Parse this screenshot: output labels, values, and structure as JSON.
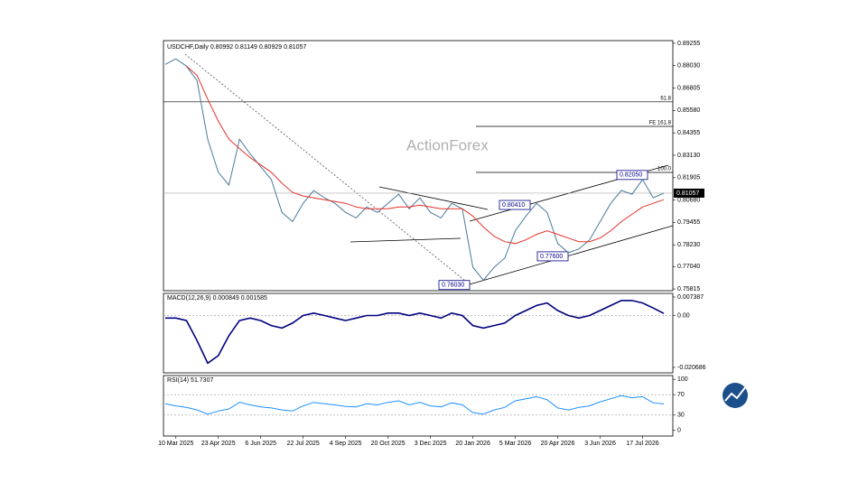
{
  "chart_data": [
    {
      "type": "line",
      "title": "USDCHF,Daily 0.80992 0.81149 0.80929 0.81057",
      "watermark": "ActionForex",
      "categories": [
        null,
        "10 Mar 2025",
        null,
        null,
        null,
        "23 Apr 2025",
        null,
        null,
        null,
        "6 Jun 2025",
        null,
        null,
        null,
        "22 Jul 2025",
        null,
        null,
        null,
        "4 Sep 2025",
        null,
        null,
        null,
        "20 Oct 2025",
        null,
        null,
        null,
        "3 Dec 2025",
        null,
        null,
        null,
        "20 Jan 2026",
        null,
        null,
        null,
        "5 Mar 2026",
        null,
        null,
        null,
        "20 Apr 2026",
        null,
        null,
        null,
        "3 Jun 2026",
        null,
        null,
        null,
        "17 Jul 2026",
        null,
        null
      ],
      "series": [
        {
          "color": "#4a7a9a",
          "values": [
            0.881,
            0.884,
            0.88,
            0.872,
            0.84,
            0.822,
            0.815,
            0.84,
            0.832,
            0.825,
            0.818,
            0.8,
            0.795,
            0.805,
            0.812,
            0.808,
            0.805,
            0.8,
            0.797,
            0.803,
            0.8,
            0.805,
            0.81,
            0.802,
            0.808,
            0.8,
            0.797,
            0.805,
            0.802,
            0.77,
            0.763,
            0.77,
            0.775,
            0.79,
            0.798,
            0.805,
            0.8,
            0.783,
            0.778,
            0.78,
            0.785,
            0.795,
            0.805,
            0.812,
            0.81,
            0.818,
            0.808,
            0.81057
          ]
        },
        {
          "color": "#e8302a",
          "values": [
            null,
            null,
            0.88,
            0.875,
            0.862,
            0.85,
            0.84,
            0.835,
            0.83,
            0.826,
            0.822,
            0.816,
            0.811,
            0.809,
            0.808,
            0.807,
            0.806,
            0.805,
            0.803,
            0.802,
            0.802,
            0.802,
            0.803,
            0.803,
            0.804,
            0.803,
            0.802,
            0.802,
            0.802,
            0.798,
            0.792,
            0.787,
            0.784,
            0.783,
            0.785,
            0.788,
            0.79,
            0.788,
            0.786,
            0.784,
            0.784,
            0.786,
            0.79,
            0.795,
            0.799,
            0.803,
            0.805,
            0.807
          ]
        }
      ],
      "ylim": [
        0.7572,
        0.894
      ],
      "yticks": [
        0.89255,
        0.8803,
        0.86805,
        0.8558,
        0.84355,
        0.8313,
        0.81905,
        0.8068,
        0.79455,
        0.7823,
        0.7704,
        0.75815
      ],
      "ytick_labels": [
        "0.89255",
        "0.88030",
        "0.86805",
        "0.85580",
        "0.84355",
        "0.83130",
        "0.81905",
        "0.80680",
        "0.79455",
        "0.78230",
        "0.77040",
        "0.75815"
      ],
      "current_price": 0.81057,
      "current_price_label": "0.81057",
      "levels": [
        {
          "label": "61.8",
          "value": 0.8605
        },
        {
          "label": "FE 161.8",
          "value": 0.8471
        },
        {
          "label": "100.0",
          "value": 0.8219
        }
      ],
      "annotations": [
        {
          "text": "0.82050",
          "value": 0.8205
        },
        {
          "text": "0.80410",
          "value": 0.8041
        },
        {
          "text": "0.77600",
          "value": 0.776
        },
        {
          "text": "0.76030",
          "value": 0.7603
        }
      ]
    },
    {
      "type": "line",
      "title": "MACD(12,26,9) 0.000849 0.001585",
      "series": [
        {
          "color": "#000080",
          "values": [
            -0.001,
            -0.001,
            -0.002,
            -0.01,
            -0.019,
            -0.016,
            -0.008,
            -0.002,
            -0.001,
            -0.002,
            -0.004,
            -0.005,
            -0.003,
            0.0,
            0.001,
            0.0,
            -0.001,
            -0.002,
            -0.001,
            0.0,
            0.0,
            0.001,
            0.001,
            0.0,
            0.001,
            0.0,
            -0.001,
            0.001,
            0.0,
            -0.004,
            -0.005,
            -0.004,
            -0.003,
            0.0,
            0.002,
            0.004,
            0.005,
            0.002,
            0.0,
            -0.001,
            0.0,
            0.002,
            0.004,
            0.006,
            0.006,
            0.005,
            0.003,
            0.000849
          ]
        }
      ],
      "ylim": [
        -0.02285,
        0.00883
      ],
      "yticks": [
        {
          "value": 0.007387,
          "label": "0.007387"
        },
        {
          "value": 0,
          "label": "0.00"
        },
        {
          "value": -0.020686,
          "label": "-0.020686"
        }
      ]
    },
    {
      "type": "line",
      "title": "RSI(14) 51.7307",
      "series": [
        {
          "color": "#1e90ff",
          "values": [
            52,
            48,
            45,
            40,
            32,
            38,
            42,
            55,
            50,
            46,
            44,
            40,
            38,
            48,
            55,
            52,
            50,
            47,
            46,
            52,
            50,
            55,
            58,
            50,
            55,
            48,
            46,
            54,
            50,
            35,
            32,
            40,
            45,
            58,
            62,
            66,
            60,
            44,
            40,
            45,
            48,
            56,
            62,
            68,
            64,
            66,
            54,
            51.7307
          ]
        }
      ],
      "ylim": [
        -11,
        107.4
      ],
      "yticks": [
        100,
        70,
        30,
        0
      ]
    }
  ]
}
